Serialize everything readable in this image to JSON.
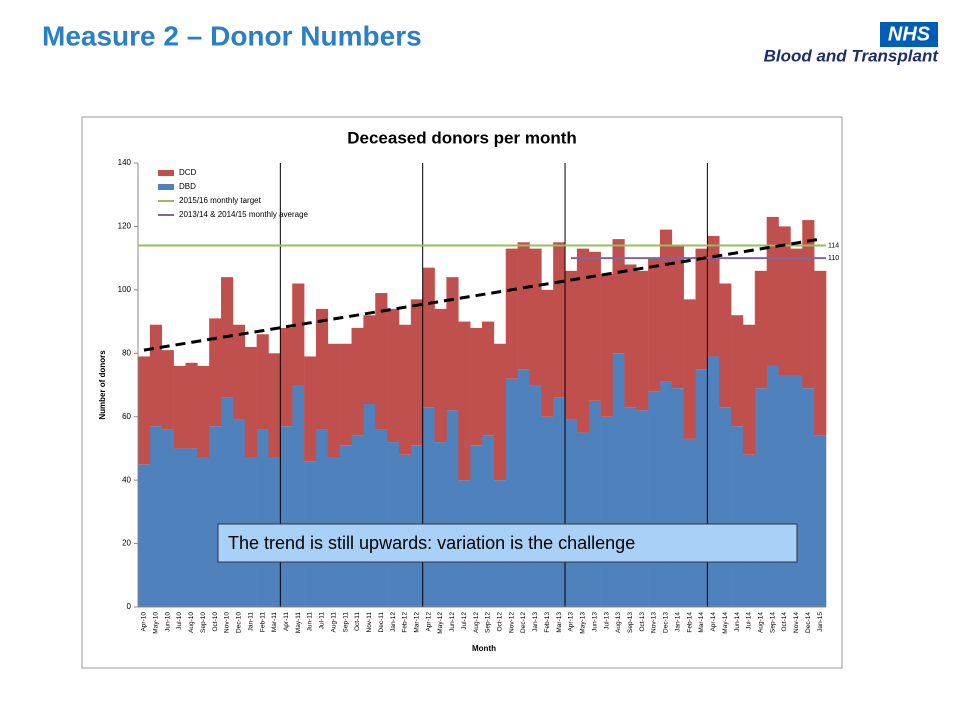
{
  "slide": {
    "title": "Measure 2 – Donor Numbers",
    "logo": {
      "badge": "NHS",
      "text": "Blood and Transplant"
    }
  },
  "chart_data": {
    "type": "bar",
    "stacked": true,
    "title": "Deceased donors per month",
    "x_label": "Month",
    "y_label": "Number of donors",
    "categories": [
      "Apr-10",
      "May-10",
      "Jun-10",
      "Jul-10",
      "Aug-10",
      "Sep-10",
      "Oct-10",
      "Nov-10",
      "Dec-10",
      "Jan-11",
      "Feb-11",
      "Mar-11",
      "Apr-11",
      "May-11",
      "Jun-11",
      "Jul-11",
      "Aug-11",
      "Sep-11",
      "Oct-11",
      "Nov-11",
      "Dec-11",
      "Jan-12",
      "Feb-12",
      "Mar-12",
      "Apr-12",
      "May-12",
      "Jun-12",
      "Jul-12",
      "Aug-12",
      "Sep-12",
      "Oct-12",
      "Nov-12",
      "Dec-12",
      "Jan-13",
      "Feb-13",
      "Mar-13",
      "Apr-13",
      "May-13",
      "Jun-13",
      "Jul-13",
      "Aug-13",
      "Sep-13",
      "Oct-13",
      "Nov-13",
      "Dec-13",
      "Jan-14",
      "Feb-14",
      "Mar-14",
      "Apr-14",
      "May-14",
      "Jun-14",
      "Jul-14",
      "Aug-14",
      "Sep-14",
      "Oct-14",
      "Nov-14",
      "Dec-14",
      "Jan-15"
    ],
    "series": [
      {
        "name": "DCD",
        "color": "#c0504d",
        "values": [
          34,
          32,
          25,
          26,
          27,
          29,
          34,
          38,
          30,
          35,
          30,
          33,
          31,
          32,
          33,
          38,
          36,
          32,
          34,
          28,
          43,
          42,
          41,
          46,
          44,
          42,
          42,
          50,
          37,
          36,
          43,
          41,
          40,
          43,
          40,
          49,
          47,
          58,
          47,
          45,
          36,
          45,
          44,
          42,
          48,
          45,
          44,
          38,
          38,
          39,
          35,
          41,
          37,
          47,
          47,
          40,
          53,
          52
        ]
      },
      {
        "name": "DBD",
        "color": "#4f81bd",
        "values": [
          45,
          57,
          56,
          50,
          50,
          47,
          57,
          66,
          59,
          47,
          56,
          47,
          57,
          70,
          46,
          56,
          47,
          51,
          54,
          64,
          56,
          52,
          48,
          51,
          63,
          52,
          62,
          40,
          51,
          54,
          40,
          72,
          75,
          70,
          60,
          66,
          59,
          55,
          65,
          60,
          80,
          63,
          62,
          68,
          71,
          69,
          53,
          75,
          79,
          63,
          57,
          48,
          69,
          76,
          73,
          73,
          69,
          54
        ]
      }
    ],
    "reference_lines": [
      {
        "name": "2015/16 monthly target",
        "color": "#9bbb59",
        "value": 114,
        "x_start": "Apr-10"
      },
      {
        "name": "2013/14 & 2014/15 monthly average",
        "color": "#8064a2",
        "value": 110,
        "x_start": "Apr-13"
      }
    ],
    "trendline": {
      "values": [
        81,
        116
      ],
      "color": "#000000"
    },
    "ylim": [
      0,
      140
    ],
    "yticks": [
      0,
      20,
      40,
      60,
      80,
      100,
      120,
      140
    ],
    "annotation": "The trend is still upwards:  variation is the challenge",
    "legend": "top-left"
  }
}
